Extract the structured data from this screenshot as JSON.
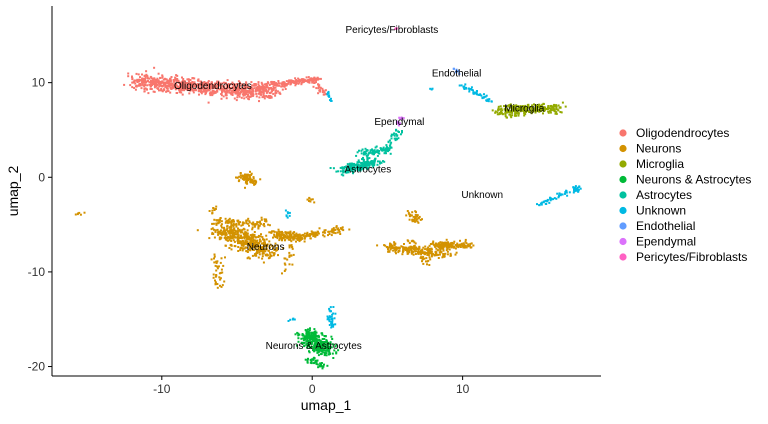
{
  "chart_data": {
    "type": "scatter",
    "xlabel": "umap_1",
    "ylabel": "umap_2",
    "xlim": [
      -17.3,
      19.2
    ],
    "ylim": [
      -21.0,
      18.1
    ],
    "x_ticks": [
      -10,
      0,
      10
    ],
    "y_ticks": [
      -20,
      -10,
      0,
      10
    ],
    "grid": false,
    "legend_position": "right",
    "series": [
      {
        "name": "Oligodendrocytes",
        "color": "#F8766D",
        "center": [
          -6.8,
          9.8
        ],
        "label": "Oligodendrocytes"
      },
      {
        "name": "Neurons",
        "color": "#D39200",
        "center": [
          -3.2,
          -7.2
        ],
        "label": "Neurons"
      },
      {
        "name": "Microglia",
        "color": "#93AA00",
        "center": [
          14.2,
          7.3
        ],
        "label": "Microglia"
      },
      {
        "name": "Neurons & Astrocytes",
        "color": "#00BA38",
        "center": [
          0.5,
          -18.0
        ],
        "label": "Neurons & Astrocytes"
      },
      {
        "name": "Astrocytes",
        "color": "#00C19F",
        "center": [
          3.7,
          1.8
        ],
        "label": "Astrocytes"
      },
      {
        "name": "Unknown",
        "color": "#00B9E3",
        "center": [
          15.8,
          -0.5
        ],
        "label": "Unknown"
      },
      {
        "name": "Endothelial",
        "color": "#619CFF",
        "center": [
          9.8,
          11.2
        ],
        "label": "Endothelial"
      },
      {
        "name": "Ependymal",
        "color": "#DB72FB",
        "center": [
          5.8,
          6.5
        ],
        "label": "Ependymal"
      },
      {
        "name": "Pericytes/Fibroblasts",
        "color": "#FF61C3",
        "center": [
          5.6,
          15.5
        ],
        "label": "Pericytes/Fibroblasts"
      }
    ],
    "cluster_labels": [
      {
        "text": "Oligodendrocytes",
        "x": -6.6,
        "y": 9.7
      },
      {
        "text": "Neurons",
        "x": -3.1,
        "y": -7.3
      },
      {
        "text": "Microglia",
        "x": 14.1,
        "y": 7.3
      },
      {
        "text": "Neurons & Astrocytes",
        "x": 0.1,
        "y": -17.8
      },
      {
        "text": "Astrocytes",
        "x": 3.7,
        "y": 0.9
      },
      {
        "text": "Unknown",
        "x": 11.3,
        "y": -1.8
      },
      {
        "text": "Endothelial",
        "x": 9.6,
        "y": 11.0
      },
      {
        "text": "Ependymal",
        "x": 5.8,
        "y": 5.9
      },
      {
        "text": "Pericytes/Fibroblasts",
        "x": 5.3,
        "y": 15.6
      }
    ]
  }
}
